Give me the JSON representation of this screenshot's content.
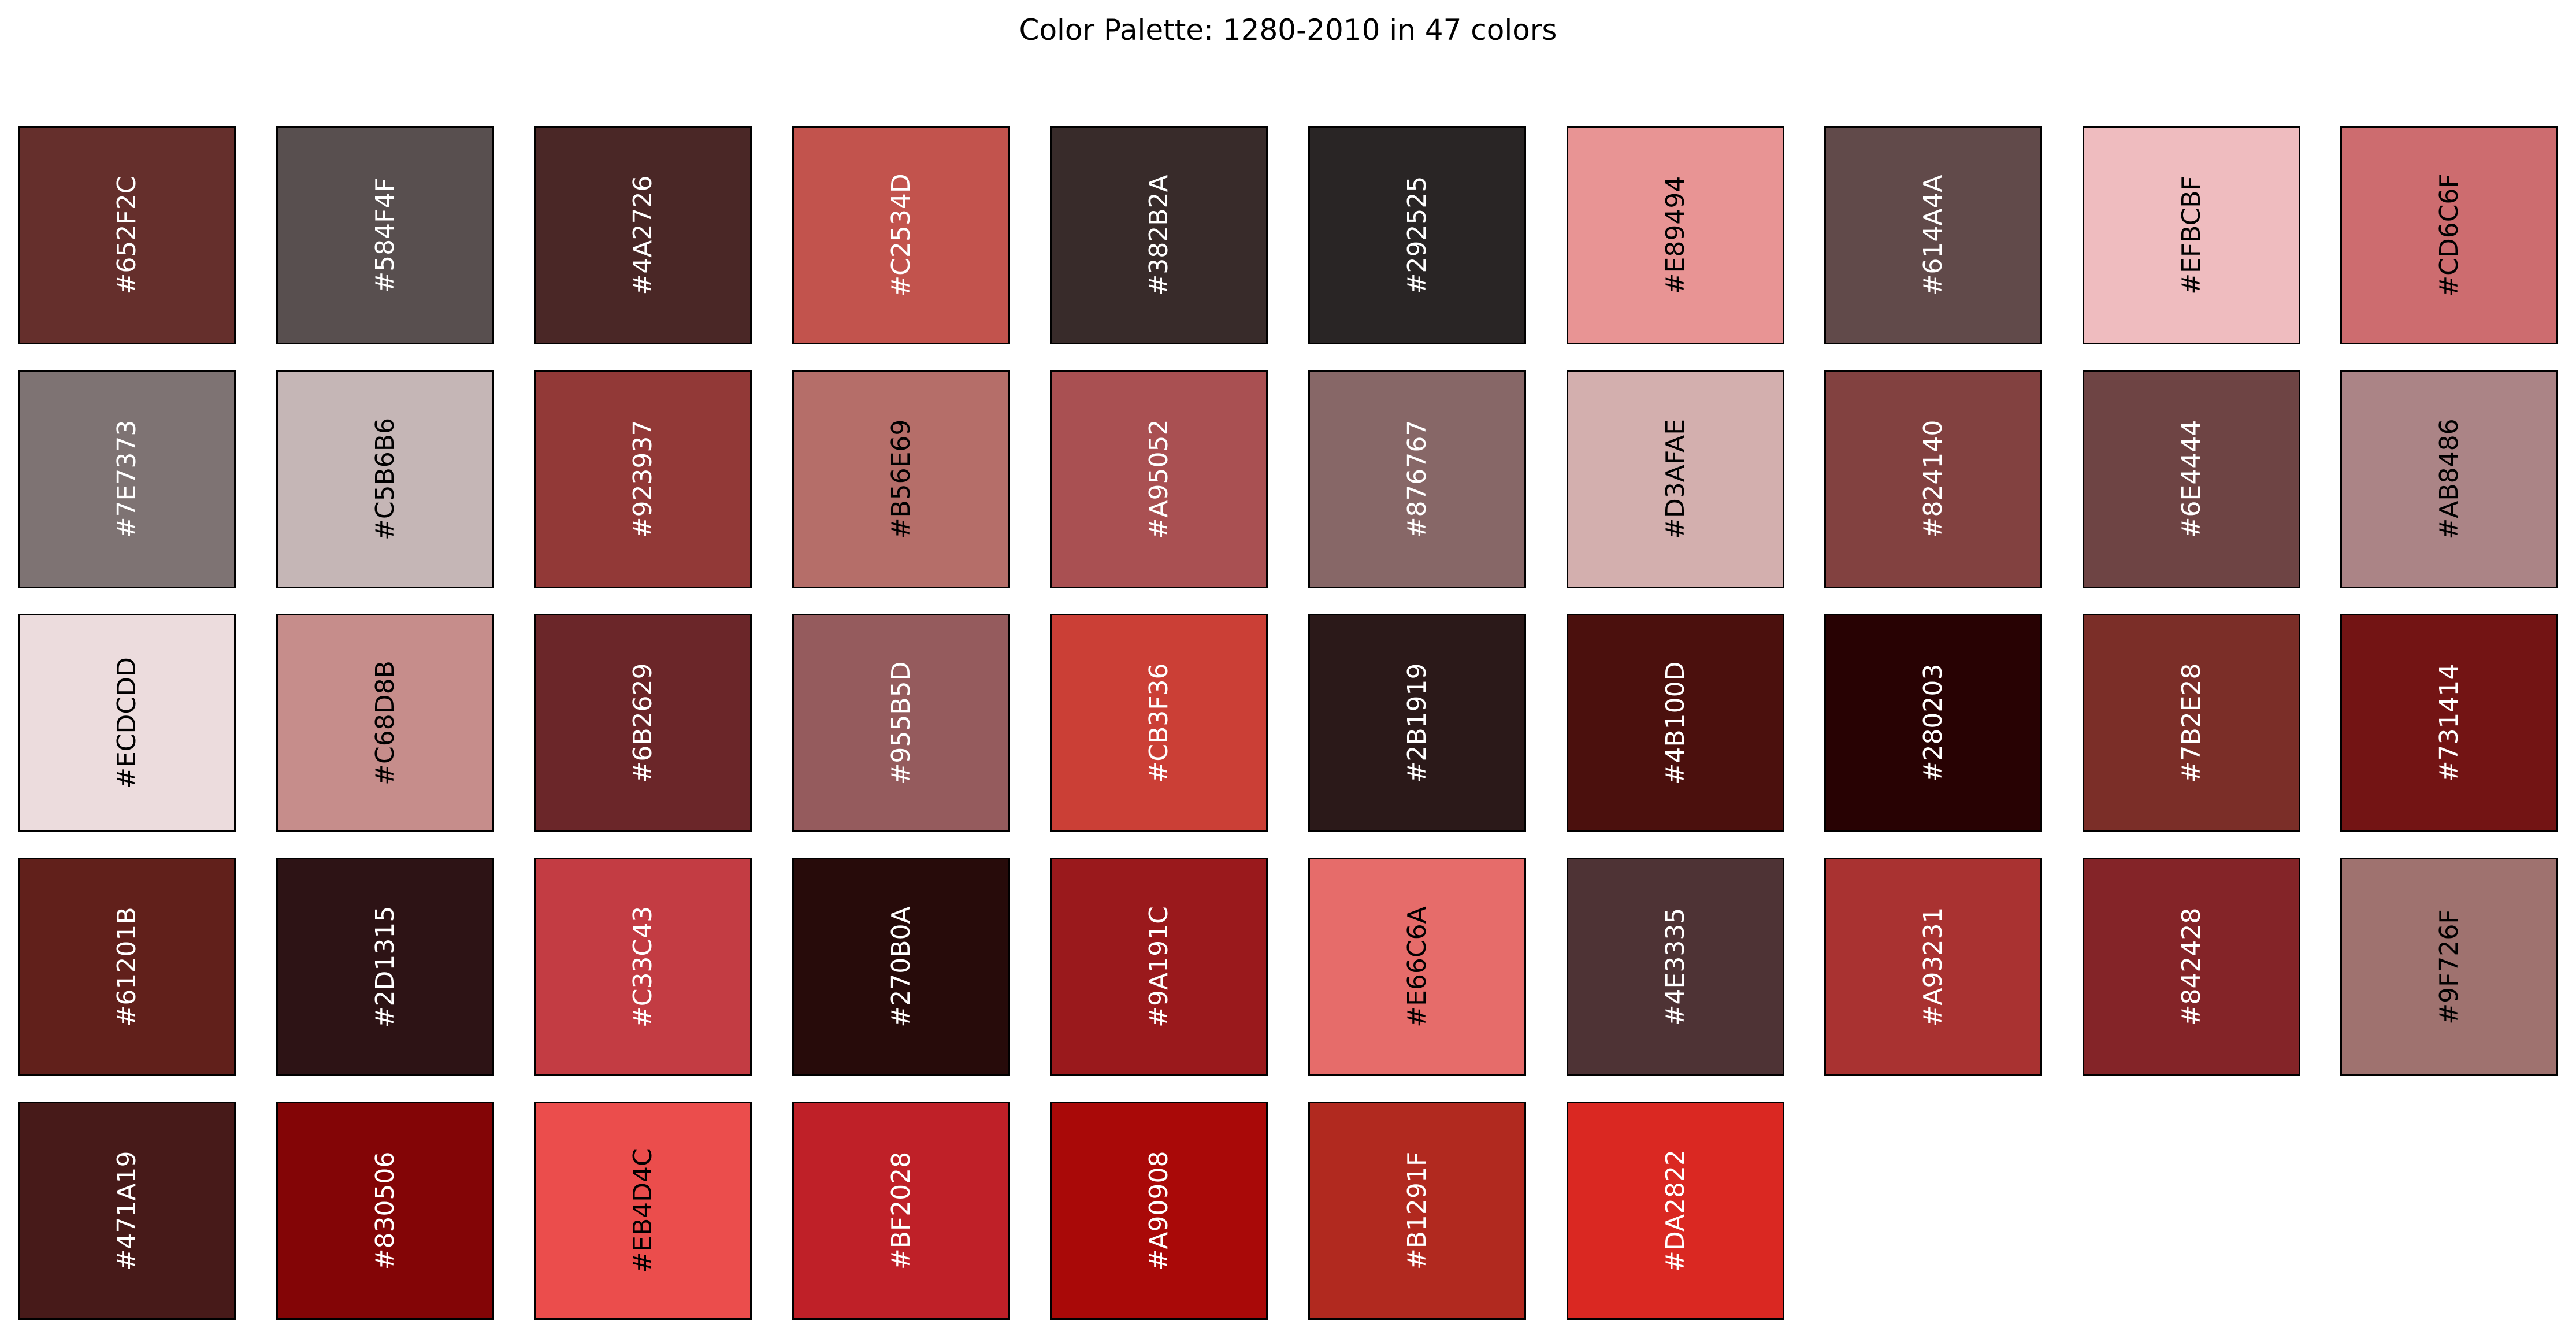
{
  "chart_data": {
    "type": "table",
    "title": "Color Palette: 1280-2010 in 47 colors",
    "columns": 10,
    "swatches": [
      {
        "hex": "#652F2C",
        "label_color": "#FFFFFF"
      },
      {
        "hex": "#584F4F",
        "label_color": "#FFFFFF"
      },
      {
        "hex": "#4A2726",
        "label_color": "#FFFFFF"
      },
      {
        "hex": "#C2534D",
        "label_color": "#FFFFFF"
      },
      {
        "hex": "#382B2A",
        "label_color": "#FFFFFF"
      },
      {
        "hex": "#292525",
        "label_color": "#FFFFFF"
      },
      {
        "hex": "#E89494",
        "label_color": "#000000"
      },
      {
        "hex": "#614A4A",
        "label_color": "#FFFFFF"
      },
      {
        "hex": "#EFBCBF",
        "label_color": "#000000"
      },
      {
        "hex": "#CD6C6F",
        "label_color": "#000000"
      },
      {
        "hex": "#7E7373",
        "label_color": "#FFFFFF"
      },
      {
        "hex": "#C5B6B6",
        "label_color": "#000000"
      },
      {
        "hex": "#923937",
        "label_color": "#FFFFFF"
      },
      {
        "hex": "#B56E69",
        "label_color": "#000000"
      },
      {
        "hex": "#A95052",
        "label_color": "#FFFFFF"
      },
      {
        "hex": "#876767",
        "label_color": "#FFFFFF"
      },
      {
        "hex": "#D3AFAE",
        "label_color": "#000000"
      },
      {
        "hex": "#824140",
        "label_color": "#FFFFFF"
      },
      {
        "hex": "#6E4444",
        "label_color": "#FFFFFF"
      },
      {
        "hex": "#AB8486",
        "label_color": "#000000"
      },
      {
        "hex": "#ECDCDD",
        "label_color": "#000000"
      },
      {
        "hex": "#C68D8B",
        "label_color": "#000000"
      },
      {
        "hex": "#6B2629",
        "label_color": "#FFFFFF"
      },
      {
        "hex": "#955B5D",
        "label_color": "#FFFFFF"
      },
      {
        "hex": "#CB3F36",
        "label_color": "#FFFFFF"
      },
      {
        "hex": "#2B1919",
        "label_color": "#FFFFFF"
      },
      {
        "hex": "#4B100D",
        "label_color": "#FFFFFF"
      },
      {
        "hex": "#280203",
        "label_color": "#FFFFFF"
      },
      {
        "hex": "#7B2E28",
        "label_color": "#FFFFFF"
      },
      {
        "hex": "#731414",
        "label_color": "#FFFFFF"
      },
      {
        "hex": "#61201B",
        "label_color": "#FFFFFF"
      },
      {
        "hex": "#2D1315",
        "label_color": "#FFFFFF"
      },
      {
        "hex": "#C33C43",
        "label_color": "#FFFFFF"
      },
      {
        "hex": "#270B0A",
        "label_color": "#FFFFFF"
      },
      {
        "hex": "#9A191C",
        "label_color": "#FFFFFF"
      },
      {
        "hex": "#E66C6A",
        "label_color": "#000000"
      },
      {
        "hex": "#4E3335",
        "label_color": "#FFFFFF"
      },
      {
        "hex": "#A93231",
        "label_color": "#FFFFFF"
      },
      {
        "hex": "#842428",
        "label_color": "#FFFFFF"
      },
      {
        "hex": "#9F726F",
        "label_color": "#000000"
      },
      {
        "hex": "#471A19",
        "label_color": "#FFFFFF"
      },
      {
        "hex": "#830506",
        "label_color": "#FFFFFF"
      },
      {
        "hex": "#EB4D4C",
        "label_color": "#000000"
      },
      {
        "hex": "#BF2028",
        "label_color": "#FFFFFF"
      },
      {
        "hex": "#A90908",
        "label_color": "#FFFFFF"
      },
      {
        "hex": "#B1291F",
        "label_color": "#FFFFFF"
      },
      {
        "hex": "#DA2822",
        "label_color": "#FFFFFF"
      }
    ]
  }
}
